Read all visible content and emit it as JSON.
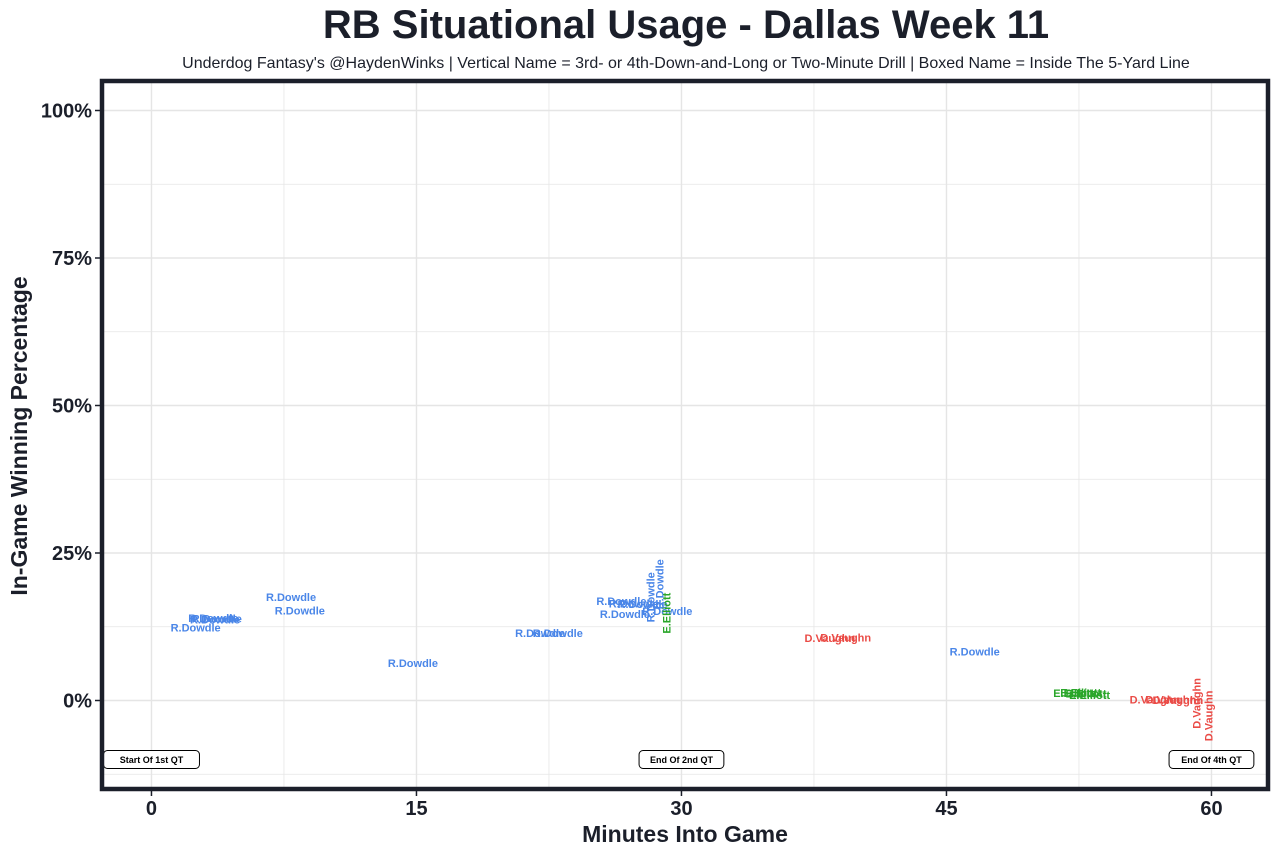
{
  "chart_data": {
    "type": "scatter",
    "title": "RB Situational Usage - Dallas Week 11",
    "subtitle": "Underdog Fantasy's @HaydenWinks | Vertical Name = 3rd- or 4th-Down-and-Long or Two-Minute Drill | Boxed Name = Inside The 5-Yard Line",
    "xlabel": "Minutes Into Game",
    "ylabel": "In-Game Winning Percentage",
    "xlim": [
      -2.8,
      63.2
    ],
    "ylim": [
      -15,
      105
    ],
    "xticks": [
      0,
      15,
      30,
      45,
      60
    ],
    "xtick_labels": [
      "0",
      "15",
      "30",
      "45",
      "60"
    ],
    "yticks": [
      0,
      25,
      50,
      75,
      100
    ],
    "ytick_labels": [
      "0%",
      "25%",
      "50%",
      "75%",
      "100%"
    ],
    "grid": true,
    "colors": {
      "R.Dowdle": "#4a86e8",
      "E.Elliott": "#2aa62a",
      "D.Vaughn": "#ea4b46",
      "frame": "#1b1f2a",
      "grid": "#e5e5e5"
    },
    "points": [
      {
        "player": "R.Dowdle",
        "x": 3.5,
        "y": 13.8,
        "vertical": false
      },
      {
        "player": "R.Dowdle",
        "x": 3.6,
        "y": 13.6,
        "vertical": false
      },
      {
        "player": "R.Dowdle",
        "x": 3.7,
        "y": 13.7,
        "vertical": false
      },
      {
        "player": "R.Dowdle",
        "x": 2.5,
        "y": 12.2,
        "vertical": false
      },
      {
        "player": "R.Dowdle",
        "x": 7.9,
        "y": 17.4,
        "vertical": false
      },
      {
        "player": "R.Dowdle",
        "x": 8.4,
        "y": 15.1,
        "vertical": false
      },
      {
        "player": "R.Dowdle",
        "x": 14.8,
        "y": 6.2,
        "vertical": false
      },
      {
        "player": "R.Dowdle",
        "x": 22.0,
        "y": 11.3,
        "vertical": false
      },
      {
        "player": "R.Dowdle",
        "x": 23.0,
        "y": 11.3,
        "vertical": false
      },
      {
        "player": "R.Dowdle",
        "x": 26.6,
        "y": 16.7,
        "vertical": false
      },
      {
        "player": "R.Dowdle",
        "x": 27.3,
        "y": 16.3,
        "vertical": false
      },
      {
        "player": "R.Dowdle",
        "x": 26.8,
        "y": 14.5,
        "vertical": false
      },
      {
        "player": "R.Dowdle",
        "x": 27.8,
        "y": 16.2,
        "vertical": false
      },
      {
        "player": "R.Dowdle",
        "x": 28.3,
        "y": 17.5,
        "vertical": true
      },
      {
        "player": "R.Dowdle",
        "x": 28.8,
        "y": 19.7,
        "vertical": true
      },
      {
        "player": "R.Dowdle",
        "x": 29.2,
        "y": 15.0,
        "vertical": false
      },
      {
        "player": "E.Elliott",
        "x": 29.2,
        "y": 14.8,
        "vertical": true
      },
      {
        "player": "D.Vaughn",
        "x": 38.4,
        "y": 10.4,
        "vertical": false
      },
      {
        "player": "D.Vaughn",
        "x": 39.3,
        "y": 10.5,
        "vertical": false
      },
      {
        "player": "R.Dowdle",
        "x": 46.6,
        "y": 8.1,
        "vertical": false
      },
      {
        "player": "E.Elliott",
        "x": 52.2,
        "y": 1.1,
        "vertical": false
      },
      {
        "player": "E.Elliott",
        "x": 52.6,
        "y": 1.2,
        "vertical": false
      },
      {
        "player": "E.Elliott",
        "x": 52.9,
        "y": 1.0,
        "vertical": false
      },
      {
        "player": "E.Elliott",
        "x": 53.1,
        "y": 0.8,
        "vertical": false
      },
      {
        "player": "D.Vaughn",
        "x": 56.8,
        "y": 0.0,
        "vertical": false
      },
      {
        "player": "D.Vaughn",
        "x": 57.7,
        "y": 0.0,
        "vertical": false
      },
      {
        "player": "D.Vaughn",
        "x": 58.1,
        "y": -0.1,
        "vertical": false
      },
      {
        "player": "D.Vaughn",
        "x": 59.2,
        "y": -0.5,
        "vertical": true
      },
      {
        "player": "D.Vaughn",
        "x": 59.9,
        "y": -2.6,
        "vertical": true
      }
    ],
    "annotations": [
      {
        "x": 0,
        "y": -10,
        "label": "Start Of 1st QT"
      },
      {
        "x": 30,
        "y": -10,
        "label": "End Of 2nd QT"
      },
      {
        "x": 60,
        "y": -10,
        "label": "End Of 4th QT"
      }
    ]
  }
}
